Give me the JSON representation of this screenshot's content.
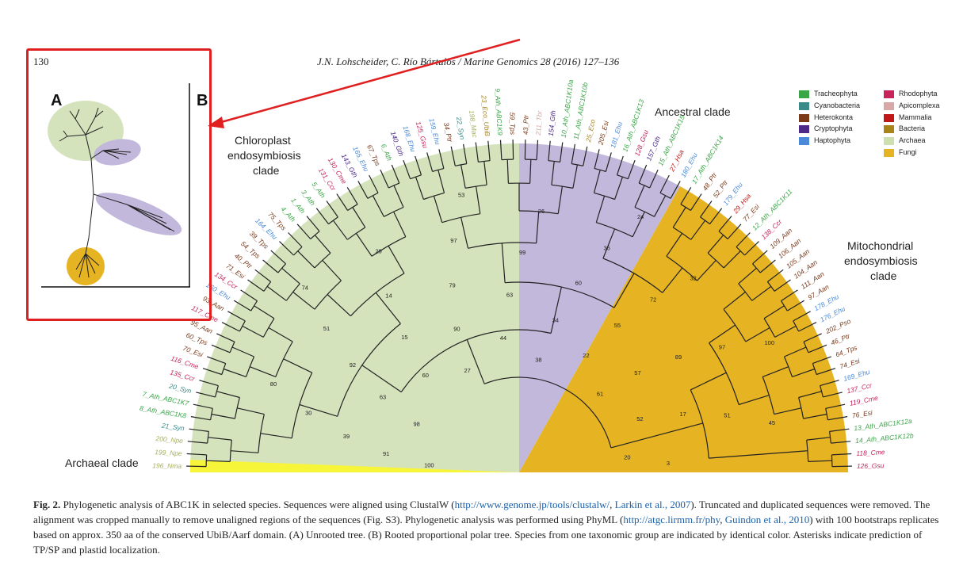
{
  "header": {
    "page_number": "130",
    "running_head": "J.N. Lohscheider, C. Río Bártulos / Marine Genomics 28 (2016) 127–136"
  },
  "figure": {
    "panel_labels": {
      "a": "A",
      "b": "B"
    },
    "clade_labels": {
      "chloroplast": [
        "Chloroplast",
        "endosymbiosis",
        "clade"
      ],
      "ancestral": "Ancestral clade",
      "mitochondrial": [
        "Mitochondrial",
        "endosymbiosis",
        "clade"
      ],
      "archaeal": "Archaeal clade"
    },
    "clade_colors": {
      "chloroplast": "#d5e3bd",
      "ancestral": "#c2b8dc",
      "mitochondrial": "#e6b423",
      "archaeal": "#f7f53a"
    },
    "legend": [
      {
        "label": "Tracheophyta",
        "color": "#3aa648"
      },
      {
        "label": "Cyanobacteria",
        "color": "#3a8a8a"
      },
      {
        "label": "Heterokonta",
        "color": "#7a3a1a"
      },
      {
        "label": "Cryptophyta",
        "color": "#4b2a8a"
      },
      {
        "label": "Haptophyta",
        "color": "#4a8ad8"
      },
      {
        "label": "Rhodophyta",
        "color": "#c8245a"
      },
      {
        "label": "Apicomplexa",
        "color": "#d8a8a8"
      },
      {
        "label": "Mammalia",
        "color": "#c01818"
      },
      {
        "label": "Bacteria",
        "color": "#a8841a"
      },
      {
        "label": "Archaea",
        "color": "#cfe0b0"
      },
      {
        "label": "Fungi",
        "color": "#e6b423"
      }
    ],
    "left_labels": [
      {
        "text": "3_Ath",
        "color": "#3aa648"
      },
      {
        "text": "1_Ath",
        "color": "#3aa648"
      },
      {
        "text": "4_Ath",
        "color": "#3aa648"
      },
      {
        "text": "75_Tps",
        "color": "#7a3a1a"
      },
      {
        "text": "164_Ehu",
        "color": "#4a8ad8"
      },
      {
        "text": "39_Tps",
        "color": "#7a3a1a"
      },
      {
        "text": "54_Tps",
        "color": "#7a3a1a"
      },
      {
        "text": "40_Ptr",
        "color": "#7a3a1a"
      },
      {
        "text": "71_Esi",
        "color": "#7a3a1a"
      },
      {
        "text": "134_Ccr",
        "color": "#c8245a"
      },
      {
        "text": "160_Ehu",
        "color": "#4a8ad8"
      },
      {
        "text": "93_Aan",
        "color": "#7a3a1a"
      },
      {
        "text": "117_Cme",
        "color": "#c8245a"
      },
      {
        "text": "95_Aan",
        "color": "#7a3a1a"
      },
      {
        "text": "60_Tps",
        "color": "#7a3a1a"
      },
      {
        "text": "70_Esi",
        "color": "#7a3a1a"
      },
      {
        "text": "116_Cme",
        "color": "#c8245a"
      },
      {
        "text": "135_Ccr",
        "color": "#c8245a"
      },
      {
        "text": "20_Syn",
        "color": "#3a8a8a"
      },
      {
        "text": "7_Ath_ABC1K7",
        "color": "#3aa648"
      },
      {
        "text": "8_Ath_ABC1K8",
        "color": "#3aa648"
      },
      {
        "text": "21_Syn",
        "color": "#3a8a8a"
      },
      {
        "text": "200_Npe",
        "color": "#a8b060"
      },
      {
        "text": "199_Npe",
        "color": "#a8b060"
      },
      {
        "text": "196_Nma",
        "color": "#a8b060"
      }
    ],
    "right_labels": [
      {
        "text": "48_Ptr",
        "color": "#7a3a1a"
      },
      {
        "text": "52_Ptr",
        "color": "#7a3a1a"
      },
      {
        "text": "179_Ehu",
        "color": "#4a8ad8"
      },
      {
        "text": "29_Hsa",
        "color": "#c01818"
      },
      {
        "text": "77_Esi",
        "color": "#7a3a1a"
      },
      {
        "text": "12_Ath_ABC1K11",
        "color": "#3aa648"
      },
      {
        "text": "138_Ccr",
        "color": "#c8245a"
      },
      {
        "text": "109_Aan",
        "color": "#7a3a1a"
      },
      {
        "text": "106_Aan",
        "color": "#7a3a1a"
      },
      {
        "text": "105_Aan",
        "color": "#7a3a1a"
      },
      {
        "text": "104_Aan",
        "color": "#7a3a1a"
      },
      {
        "text": "111_Aan",
        "color": "#7a3a1a"
      },
      {
        "text": "97_Aan",
        "color": "#7a3a1a"
      },
      {
        "text": "178_Ehu",
        "color": "#4a8ad8"
      },
      {
        "text": "176_Ehu",
        "color": "#4a8ad8"
      },
      {
        "text": "202_Pso",
        "color": "#7a3a1a"
      },
      {
        "text": "46_Ptr",
        "color": "#7a3a1a"
      },
      {
        "text": "64_Tps",
        "color": "#7a3a1a"
      },
      {
        "text": "74_Esi",
        "color": "#7a3a1a"
      },
      {
        "text": "169_Ehu",
        "color": "#4a8ad8"
      },
      {
        "text": "137_Ccr",
        "color": "#c8245a"
      },
      {
        "text": "119_Cme",
        "color": "#c8245a"
      },
      {
        "text": "76_Esi",
        "color": "#7a3a1a"
      },
      {
        "text": "13_Ath_ABC1K12a",
        "color": "#3aa648"
      },
      {
        "text": "14_Ath_ABC1K12b",
        "color": "#3aa648"
      },
      {
        "text": "118_Cme",
        "color": "#c8245a"
      },
      {
        "text": "126_Gsu",
        "color": "#c8245a"
      }
    ],
    "top_labels": [
      {
        "text": "5_Ath",
        "color": "#3aa648"
      },
      {
        "text": "131_Ccr",
        "color": "#c8245a"
      },
      {
        "text": "130_Cme",
        "color": "#c8245a"
      },
      {
        "text": "143_Gth",
        "color": "#4b2a8a"
      },
      {
        "text": "165_Ehu",
        "color": "#4a8ad8"
      },
      {
        "text": "67_Tps",
        "color": "#7a3a1a"
      },
      {
        "text": "6_Ath",
        "color": "#3aa648"
      },
      {
        "text": "140_Gth",
        "color": "#4b2a8a"
      },
      {
        "text": "168_Ehu",
        "color": "#4a8ad8"
      },
      {
        "text": "125_Gsu",
        "color": "#c8245a"
      },
      {
        "text": "159_Ehu",
        "color": "#4a8ad8"
      },
      {
        "text": "34_Ptr",
        "color": "#7a3a1a"
      },
      {
        "text": "22_Syn",
        "color": "#3a8a8a"
      },
      {
        "text": "198_Mac",
        "color": "#a8b060"
      },
      {
        "text": "23_Eco_UbiB",
        "color": "#a8841a"
      },
      {
        "text": "9_Ath_ABC1K9",
        "color": "#3aa648"
      },
      {
        "text": "59_Tps",
        "color": "#7a3a1a"
      },
      {
        "text": "43_Ptr",
        "color": "#7a3a1a"
      },
      {
        "text": "211_Tbr",
        "color": "#d8a8a8"
      },
      {
        "text": "154_Gth",
        "color": "#4b2a8a"
      },
      {
        "text": "10_Ath_ABC1K10a",
        "color": "#3aa648"
      },
      {
        "text": "11_Ath_ABC1K10b",
        "color": "#3aa648"
      },
      {
        "text": "25_Eco",
        "color": "#a8841a"
      },
      {
        "text": "205_Esi",
        "color": "#7a3a1a"
      },
      {
        "text": "181_Ehu",
        "color": "#4a8ad8"
      },
      {
        "text": "16_Ath_ABC1K13",
        "color": "#3aa648"
      },
      {
        "text": "128_Gsu",
        "color": "#c8245a"
      },
      {
        "text": "157_Gth",
        "color": "#4b2a8a"
      },
      {
        "text": "15_Ath_ABC1K15",
        "color": "#3aa648"
      },
      {
        "text": "27_Hsa",
        "color": "#c01818"
      },
      {
        "text": "180_Ehu",
        "color": "#4a8ad8"
      },
      {
        "text": "17_Ath_ABC1K14",
        "color": "#3aa648"
      }
    ],
    "bootstrap_values": [
      {
        "text": "100"
      },
      {
        "text": "91"
      },
      {
        "text": "39"
      },
      {
        "text": "30"
      },
      {
        "text": "80"
      },
      {
        "text": "98"
      },
      {
        "text": "63"
      },
      {
        "text": "92"
      },
      {
        "text": "51"
      },
      {
        "text": "74"
      },
      {
        "text": "60"
      },
      {
        "text": "15"
      },
      {
        "text": "14"
      },
      {
        "text": "29"
      },
      {
        "text": "27"
      },
      {
        "text": "90"
      },
      {
        "text": "79"
      },
      {
        "text": "97"
      },
      {
        "text": "53"
      },
      {
        "text": "44"
      },
      {
        "text": "63"
      },
      {
        "text": "99"
      },
      {
        "text": "26"
      },
      {
        "text": "38"
      },
      {
        "text": "34"
      },
      {
        "text": "60"
      },
      {
        "text": "36"
      },
      {
        "text": "24"
      },
      {
        "text": "22"
      },
      {
        "text": "55"
      },
      {
        "text": "72"
      },
      {
        "text": "32"
      },
      {
        "text": "61"
      },
      {
        "text": "57"
      },
      {
        "text": "89"
      },
      {
        "text": "97"
      },
      {
        "text": "100"
      },
      {
        "text": "52"
      },
      {
        "text": "17"
      },
      {
        "text": "51"
      },
      {
        "text": "45"
      },
      {
        "text": "20"
      },
      {
        "text": "3"
      }
    ]
  },
  "caption": {
    "label": "Fig. 2.",
    "text_1": " Phylogenetic analysis of ABC1K in selected species. Sequences were aligned using ClustalW (",
    "link_1": "http://www.genome.jp/tools/clustalw/",
    "text_2": ", ",
    "link_2": "Larkin et al., 2007",
    "text_3": "). Truncated and duplicated sequences were removed. The alignment was cropped manually to remove unaligned regions of the sequences (Fig. S3). Phylogenetic analysis was performed using PhyML (",
    "link_3": "http://atgc.lirmm.fr/phy",
    "text_4": ", ",
    "link_4": "Guindon et al., 2010",
    "text_5": ") with 100 bootstraps replicates based on approx. 350 aa of the conserved UbiB/Aarf domain. (A) Unrooted tree. (B) Rooted proportional polar tree. Species from one taxonomic group are indicated by identical color. Asterisks indicate prediction of TP/SP and plastid localization."
  }
}
